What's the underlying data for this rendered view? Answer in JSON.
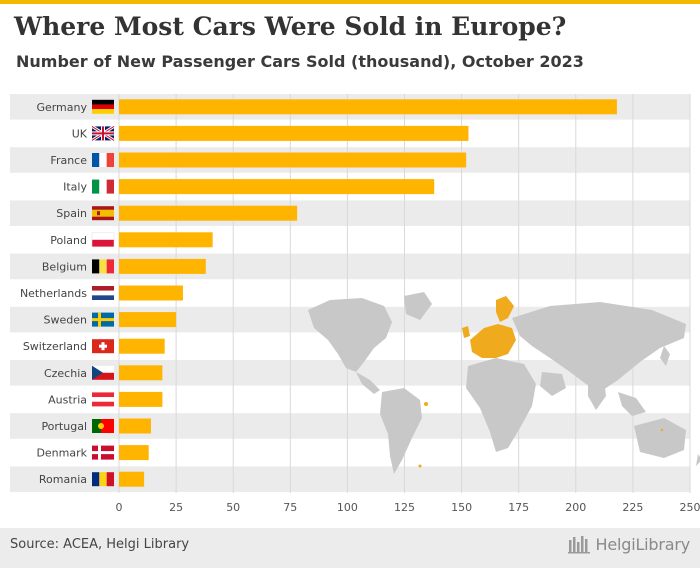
{
  "header": {
    "title": "Where Most Cars Were Sold in Europe?",
    "subtitle": "Number of New Passenger Cars Sold (thousand), October 2023"
  },
  "footer": {
    "source": "Source: ACEA, Helgi Library",
    "brand": "HelgiLibrary"
  },
  "colors": {
    "bar": "#FFB400",
    "stripe": "#EBEBEB",
    "accent": "#F5B800",
    "map_land": "#C8C8C8",
    "map_europe": "#F0AA1E"
  },
  "chart_data": {
    "type": "bar",
    "orientation": "horizontal",
    "categories": [
      "Germany",
      "UK",
      "France",
      "Italy",
      "Spain",
      "Poland",
      "Belgium",
      "Netherlands",
      "Sweden",
      "Switzerland",
      "Czechia",
      "Austria",
      "Portugal",
      "Denmark",
      "Romania"
    ],
    "values": [
      218,
      153,
      152,
      138,
      78,
      41,
      38,
      28,
      25,
      20,
      19,
      19,
      14,
      13,
      11
    ],
    "xlim": [
      0,
      250
    ],
    "xticks": [
      0,
      25,
      50,
      75,
      100,
      125,
      150,
      175,
      200,
      225,
      250
    ],
    "grid": true,
    "flags": [
      "germany-flag",
      "uk-flag",
      "france-flag",
      "italy-flag",
      "spain-flag",
      "poland-flag",
      "belgium-flag",
      "netherlands-flag",
      "sweden-flag",
      "switzerland-flag",
      "czechia-flag",
      "austria-flag",
      "portugal-flag",
      "denmark-flag",
      "romania-flag"
    ]
  }
}
